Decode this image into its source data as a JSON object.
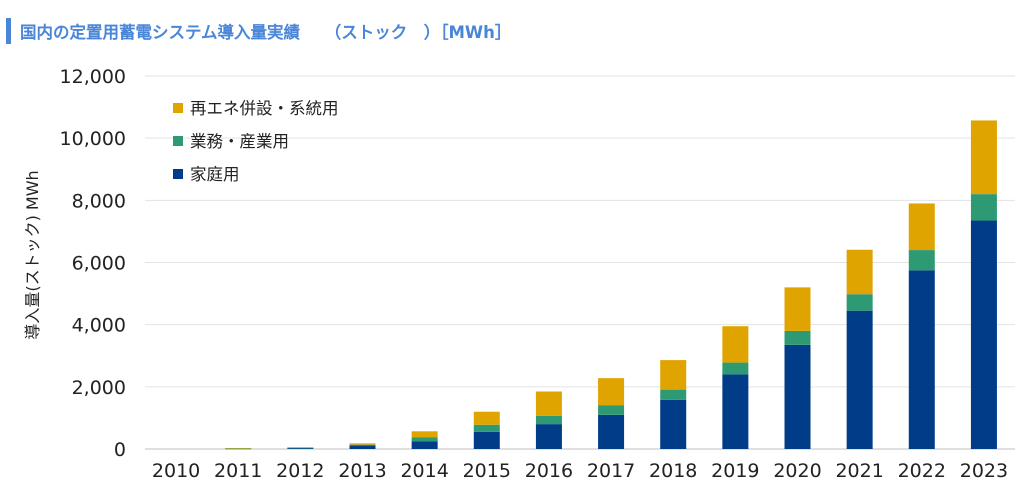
{
  "header": {
    "title": "国内の定置用蓄電システム導入量実績　　（ストック　）［MWh］"
  },
  "chart_data": {
    "type": "bar",
    "stacked": true,
    "title": "国内の定置用蓄電システム導入量実績　　（ストック　）［MWh］",
    "xlabel": "",
    "ylabel": "導入量(ストック) MWh",
    "ylim": [
      0,
      12000
    ],
    "yticks": [
      0,
      2000,
      4000,
      6000,
      8000,
      10000,
      12000
    ],
    "ytick_labels": [
      "0",
      "2,000",
      "4,000",
      "6,000",
      "8,000",
      "10,000",
      "12,000"
    ],
    "grid": true,
    "legend_position": "top-left",
    "categories": [
      "2010",
      "2011",
      "2012",
      "2013",
      "2014",
      "2015",
      "2016",
      "2017",
      "2018",
      "2019",
      "2020",
      "2021",
      "2022",
      "2023"
    ],
    "series": [
      {
        "name": "家庭用",
        "color": "#003c87",
        "values": [
          0,
          10,
          30,
          110,
          250,
          550,
          800,
          1100,
          1580,
          2400,
          3350,
          4450,
          5750,
          7350
        ]
      },
      {
        "name": "業務・産業用",
        "color": "#2e9a73",
        "values": [
          0,
          5,
          10,
          30,
          120,
          230,
          270,
          310,
          330,
          380,
          450,
          530,
          650,
          850
        ]
      },
      {
        "name": "再エネ併設・系統用",
        "color": "#e0a400",
        "values": [
          0,
          15,
          20,
          40,
          200,
          420,
          780,
          870,
          950,
          1170,
          1400,
          1430,
          1500,
          2370
        ]
      }
    ],
    "legend_order": [
      "再エネ併設・系統用",
      "業務・産業用",
      "家庭用"
    ]
  }
}
